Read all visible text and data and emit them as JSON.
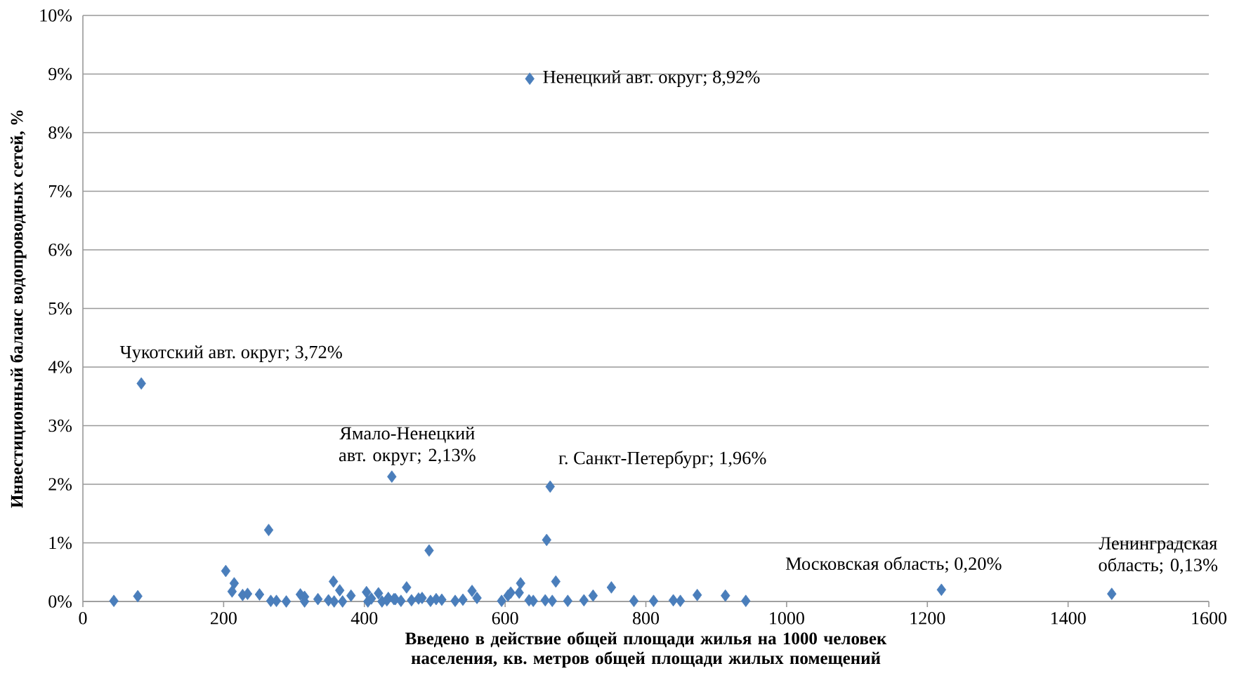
{
  "chart_data": {
    "type": "scatter",
    "xlabel": "Введено в действие общей площади жилья на 1000 человек населения, кв. метров общей площади жилых помещений",
    "ylabel": "Инвестиционный баланс водопроводных сетей, %",
    "x": [
      44,
      78,
      83,
      203,
      215,
      212,
      227,
      234,
      251,
      264,
      267,
      275,
      289,
      309,
      315,
      315,
      334,
      349,
      356,
      365,
      357,
      369,
      381,
      403,
      405,
      410,
      420,
      425,
      434,
      444,
      452,
      460,
      467,
      477,
      439,
      432,
      442,
      492,
      482,
      494,
      502,
      510,
      529,
      540,
      553,
      560,
      595,
      604,
      608,
      620,
      622,
      634,
      635,
      640,
      659,
      657,
      667,
      664,
      672,
      689,
      712,
      725,
      751,
      783,
      811,
      839,
      849,
      873,
      913,
      942,
      1220,
      1462
    ],
    "values": [
      0.01,
      0.09,
      3.72,
      0.52,
      0.31,
      0.17,
      0.11,
      0.13,
      0.12,
      1.22,
      0.01,
      0.01,
      0.0,
      0.12,
      0.08,
      0.0,
      0.04,
      0.02,
      0.34,
      0.19,
      0.0,
      0.0,
      0.1,
      0.16,
      0.0,
      0.05,
      0.14,
      0.0,
      0.06,
      0.04,
      0.01,
      0.24,
      0.02,
      0.05,
      2.13,
      0.02,
      0.04,
      0.87,
      0.06,
      0.01,
      0.04,
      0.03,
      0.01,
      0.03,
      0.18,
      0.06,
      0.01,
      0.1,
      0.15,
      0.15,
      0.31,
      0.02,
      8.92,
      0.01,
      1.05,
      0.02,
      0.01,
      1.96,
      0.34,
      0.01,
      0.02,
      0.1,
      0.24,
      0.01,
      0.01,
      0.02,
      0.01,
      0.11,
      0.1,
      0.01,
      0.2,
      0.13
    ],
    "color": "#4a7ebb",
    "marker": "diamond",
    "grid": "y",
    "xlim": [
      0,
      1600
    ],
    "xticks": [
      0,
      200,
      400,
      600,
      800,
      1000,
      1200,
      1400,
      1600
    ],
    "ylim": [
      0,
      10
    ],
    "yticks": [
      {
        "value": 0,
        "label": "0%"
      },
      {
        "value": 1,
        "label": "1%"
      },
      {
        "value": 2,
        "label": "2%"
      },
      {
        "value": 3,
        "label": "3%"
      },
      {
        "value": 4,
        "label": "4%"
      },
      {
        "value": 5,
        "label": "5%"
      },
      {
        "value": 6,
        "label": "6%"
      },
      {
        "value": 7,
        "label": "7%"
      },
      {
        "value": 8,
        "label": "8%"
      },
      {
        "value": 9,
        "label": "9%"
      },
      {
        "value": 10,
        "label": "10%"
      }
    ],
    "annotations": [
      {
        "text": "Ненецкий авт. округ; 8,92%",
        "x": 635,
        "y": 8.92
      },
      {
        "text": "Чукотский авт. округ; 3,72%",
        "x": 83,
        "y": 3.72
      },
      {
        "text": "Ямало-Ненецкий авт. округ; 2,13%",
        "x": 439,
        "y": 2.13
      },
      {
        "text": "г. Санкт-Петербург; 1,96%",
        "x": 664,
        "y": 1.96
      },
      {
        "text": "Московская область; 0,20%",
        "x": 1220,
        "y": 0.2
      },
      {
        "text": "Ленинградская область; 0,13%",
        "x": 1462,
        "y": 0.13
      }
    ]
  }
}
